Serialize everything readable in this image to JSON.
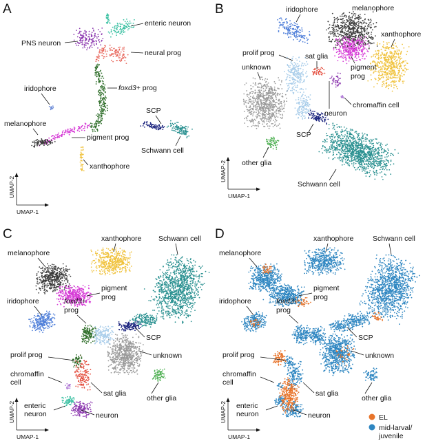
{
  "figure": {
    "panels": [
      "A",
      "B",
      "C",
      "D"
    ],
    "axis_labels": {
      "x": "UMAP-1",
      "y": "UMAP-2"
    }
  },
  "chart_data": [
    {
      "type": "scatter",
      "panel": "A",
      "xlabel": "UMAP-1",
      "ylabel": "UMAP-2",
      "clusters": [
        {
          "name": "enteric neuron",
          "label": "enteric neuron",
          "color": "#3cc1a3"
        },
        {
          "name": "PNS neuron",
          "label": "PNS neuron",
          "color": "#8e3bb0"
        },
        {
          "name": "neural prog",
          "label": "neural prog",
          "color": "#e8655a"
        },
        {
          "name": "foxd3+ prog",
          "label_italic": "foxd3",
          "label": "+ prog",
          "color": "#2f6e2a"
        },
        {
          "name": "iridophore",
          "label": "iridophore",
          "color": "#6f8ed8"
        },
        {
          "name": "melanophore",
          "label": "melanophore",
          "color": "#3c3c3c"
        },
        {
          "name": "pigment prog",
          "label": "pigment prog",
          "color": "#d63cd6"
        },
        {
          "name": "SCP",
          "label": "SCP",
          "color": "#1a237e"
        },
        {
          "name": "Schwann cell",
          "label": "Schwann cell",
          "color": "#2b9191"
        },
        {
          "name": "xanthophore",
          "label": "xanthophore",
          "color": "#f0c23c"
        }
      ]
    },
    {
      "type": "scatter",
      "panel": "B",
      "xlabel": "UMAP-1",
      "ylabel": "UMAP-2",
      "clusters": [
        {
          "name": "iridophore",
          "label": "iridophore",
          "color": "#4f7fd9"
        },
        {
          "name": "melanophore",
          "label": "melanophore",
          "color": "#3c3c3c"
        },
        {
          "name": "xanthophore",
          "label": "xanthophore",
          "color": "#f0c23c"
        },
        {
          "name": "prolif prog",
          "label": "prolif prog",
          "color": "#a9cdea"
        },
        {
          "name": "sat glia",
          "label": "sat glia",
          "color": "#e34a3a"
        },
        {
          "name": "unknown",
          "label": "unknown",
          "color": "#9a9a9a"
        },
        {
          "name": "pigment prog",
          "label": "pigment\nprog",
          "color": "#d63cd6"
        },
        {
          "name": "neuron",
          "label": "neuron",
          "color": "#8e3bb0"
        },
        {
          "name": "chromaffin cell",
          "label": "chromaffin cell",
          "color": "#b07ad6"
        },
        {
          "name": "SCP",
          "label": "SCP",
          "color": "#1a237e"
        },
        {
          "name": "other glia",
          "label": "other glia",
          "color": "#4caf50"
        },
        {
          "name": "Schwann cell",
          "label": "Schwann cell",
          "color": "#2b9191"
        }
      ]
    },
    {
      "type": "scatter",
      "panel": "C",
      "xlabel": "UMAP-1",
      "ylabel": "UMAP-2",
      "clusters": [
        {
          "name": "melanophore",
          "label": "melanophore",
          "color": "#3c3c3c"
        },
        {
          "name": "xanthophore",
          "label": "xanthophore",
          "color": "#f0c23c"
        },
        {
          "name": "Schwann cell",
          "label": "Schwann cell",
          "color": "#2b9191"
        },
        {
          "name": "pigment prog",
          "label": "pigment\nprog",
          "color": "#d63cd6"
        },
        {
          "name": "iridophore",
          "label": "iridophore",
          "color": "#4f7fd9"
        },
        {
          "name": "foxd3+ prog",
          "label_italic": "foxd3",
          "label": "+\nprog",
          "color": "#2f6e2a"
        },
        {
          "name": "SCP",
          "label": "SCP",
          "color": "#1a237e"
        },
        {
          "name": "unknown",
          "label": "unknown",
          "color": "#9a9a9a"
        },
        {
          "name": "prolif prog",
          "label": "prolif prog",
          "color": "#a9cdea"
        },
        {
          "name": "chromaffin cell",
          "label": "chromaffin\ncell",
          "color": "#b07ad6"
        },
        {
          "name": "sat glia",
          "label": "sat glia",
          "color": "#e34a3a"
        },
        {
          "name": "other glia",
          "label": "other glia",
          "color": "#4caf50"
        },
        {
          "name": "enteric neuron",
          "label": "enteric\nneuron",
          "color": "#3cc1a3"
        },
        {
          "name": "neuron",
          "label": "neuron",
          "color": "#8e3bb0"
        }
      ]
    },
    {
      "type": "scatter",
      "panel": "D",
      "xlabel": "UMAP-1",
      "ylabel": "UMAP-2",
      "legend": {
        "placement": "bottom-right",
        "entries": [
          {
            "name": "EL",
            "color": "#e8742a"
          },
          {
            "name": "mid-larval/\njuvenile",
            "color": "#2e86c1"
          }
        ]
      },
      "labels": [
        "melanophore",
        "xanthophore",
        "Schwann cell",
        "pigment\nprog",
        "iridophore",
        "foxd3+\nprog",
        "SCP",
        "unknown",
        "prolif prog",
        "chromaffin\ncell",
        "sat glia",
        "other glia",
        "enteric\nneuron",
        "neuron"
      ]
    }
  ]
}
